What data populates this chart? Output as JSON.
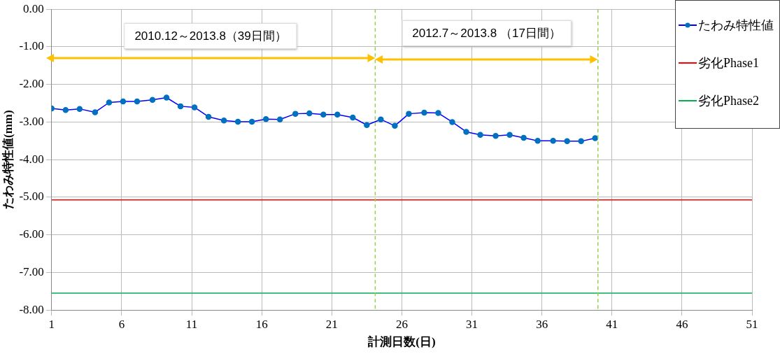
{
  "chart_data": {
    "type": "line",
    "xlabel": "計測日数(日)",
    "ylabel": "たわみ特性値(mm)",
    "xlim": [
      1,
      51
    ],
    "xticks": [
      1,
      6,
      11,
      16,
      21,
      26,
      31,
      36,
      41,
      46,
      51
    ],
    "ylim": [
      -8,
      0
    ],
    "yticks": [
      {
        "value": 0,
        "label": "0.00"
      },
      {
        "value": -1,
        "label": "-1.00"
      },
      {
        "value": -2,
        "label": "-2.00"
      },
      {
        "value": -3,
        "label": "-3.00"
      },
      {
        "value": -4,
        "label": "-4.00"
      },
      {
        "value": -5,
        "label": "-5.00"
      },
      {
        "value": -6,
        "label": "-6.00"
      },
      {
        "value": -7,
        "label": "-7.00"
      },
      {
        "value": -8,
        "label": "-8.00"
      }
    ],
    "grid": true,
    "legend": "top right",
    "marker": "circle",
    "line_style": "solid",
    "series": [
      {
        "name": "たわみ特性値",
        "color": "#0070c0",
        "x": [
          1,
          2.0,
          3.0,
          4.1,
          5.1,
          6.1,
          7.1,
          8.2,
          9.2,
          10.2,
          11.2,
          12.2,
          13.3,
          14.3,
          15.3,
          16.3,
          17.3,
          18.4,
          19.4,
          20.4,
          21.4,
          22.5,
          23.5,
          24.5,
          25.5,
          26.5,
          27.6,
          28.6,
          29.6,
          30.6,
          31.6,
          32.7,
          33.7,
          34.7,
          35.7,
          36.8,
          37.8,
          38.8,
          39.8
        ],
        "values": [
          -2.64,
          -2.68,
          -2.65,
          -2.74,
          -2.48,
          -2.45,
          -2.45,
          -2.41,
          -2.35,
          -2.58,
          -2.61,
          -2.86,
          -2.96,
          -2.99,
          -2.99,
          -2.92,
          -2.93,
          -2.78,
          -2.77,
          -2.8,
          -2.8,
          -2.88,
          -3.08,
          -2.93,
          -3.1,
          -2.78,
          -2.75,
          -2.76,
          -3.0,
          -3.26,
          -3.34,
          -3.37,
          -3.34,
          -3.42,
          -3.5,
          -3.5,
          -3.51,
          -3.51,
          -3.43
        ]
      },
      {
        "name": "劣化Phase1",
        "color": "#ff0000",
        "marker": "none",
        "x": [
          1,
          51
        ],
        "values": [
          -5.07,
          -5.07
        ]
      },
      {
        "name": "劣化Phase2",
        "color": "#00b050",
        "marker": "none",
        "x": [
          1,
          51
        ],
        "values": [
          -7.55,
          -7.55
        ]
      }
    ],
    "ref_lines": [
      {
        "axis": "x",
        "value": 24.1,
        "color": "#92d050",
        "line_style": "dashed"
      },
      {
        "axis": "x",
        "value": 40,
        "color": "#92d050",
        "line_style": "dashed"
      }
    ],
    "annotations": [
      "2010.12～2013.8（39日間）",
      "2012.7～2013.8 （17日間）"
    ]
  }
}
